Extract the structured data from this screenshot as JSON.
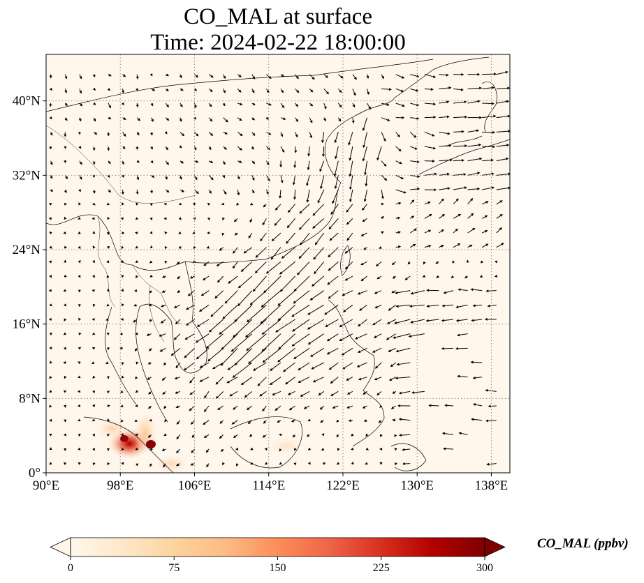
{
  "title": "CO_MAL at surface",
  "subtitle": "Time: 2024-02-22 18:00:00",
  "map": {
    "projection": "PlateCarree",
    "lon_range": [
      90,
      140
    ],
    "lat_range": [
      0,
      45
    ],
    "lon_ticks": [
      90,
      98,
      106,
      114,
      122,
      130,
      138
    ],
    "lat_ticks": [
      0,
      8,
      16,
      24,
      32,
      40
    ],
    "lon_tick_labels": [
      "90°E",
      "98°E",
      "106°E",
      "114°E",
      "122°E",
      "130°E",
      "138°E"
    ],
    "lat_tick_labels": [
      "0°",
      "8°N",
      "16°N",
      "24°N",
      "32°N",
      "40°N"
    ],
    "gridlines": "dotted gray",
    "features": [
      "coastlines",
      "country borders"
    ],
    "field": "CO_MAL surface concentration (filled)",
    "vectors": "surface wind arrows",
    "hotspot_region": "Sumatra / Malay Peninsula (~0–6°N, 96–104°E)"
  },
  "colorbar": {
    "label": "CO_MAL (ppbv)",
    "colormap": "OrRd",
    "min": 0,
    "max": 300,
    "ticks": [
      0,
      75,
      150,
      225,
      300
    ],
    "tick_labels": [
      "0",
      "75",
      "150",
      "225",
      "300"
    ],
    "extend": "both",
    "colors": [
      "#fff7ec",
      "#fee8c8",
      "#fdd49e",
      "#fdbb84",
      "#fc8d59",
      "#ef6548",
      "#d7301f",
      "#b30000",
      "#7f0000"
    ]
  }
}
